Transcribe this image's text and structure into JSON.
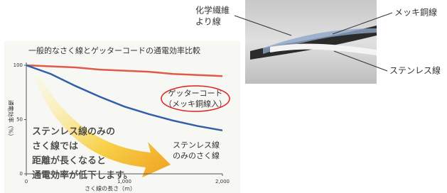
{
  "chart_data": {
    "type": "line",
    "title": "一般的なさく線とゲッターコードの通電効率比較",
    "x_label": "さく線の長さ（m）",
    "y_label": "通電効率（%）",
    "x": [
      0,
      250,
      500,
      750,
      1000,
      1250,
      1500,
      1750,
      2000
    ],
    "series": [
      {
        "label": [
          "ゲッターコード",
          "（メッキ銅線入）"
        ],
        "color": "#e05a4a",
        "values": [
          100,
          99,
          98,
          96,
          95,
          94,
          92,
          91,
          90
        ]
      },
      {
        "label": [
          "ステンレス線",
          "のみのさく線"
        ],
        "color": "#2e5fa8",
        "values": [
          100,
          92,
          81,
          71,
          62,
          55,
          49,
          44,
          40
        ]
      }
    ],
    "annotation": [
      "ステンレス線のみの",
      "さく線では",
      "距離が長くなると",
      "通電効率が低下します。"
    ],
    "xlim": [
      0,
      2000
    ],
    "ylim": [
      0,
      100
    ],
    "xticks": [
      0,
      {
        "value": 1000,
        "label": "1,000"
      },
      {
        "value": 2000,
        "label": "2,000"
      }
    ],
    "yticks": [
      0,
      50,
      100
    ]
  },
  "photo": {
    "labels": [
      [
        "化学繊維",
        "より線"
      ],
      [
        "メッキ銅線"
      ],
      [
        "ステンレス線"
      ]
    ]
  }
}
